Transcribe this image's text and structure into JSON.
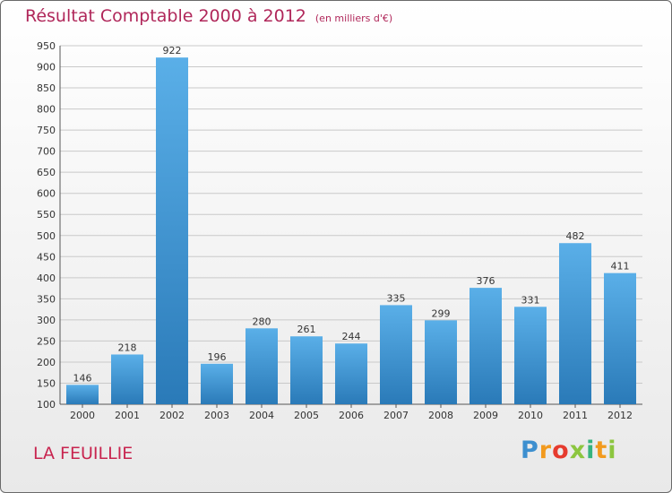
{
  "header": {
    "title": "Résultat Comptable 2000 à 2012",
    "subtitle": "(en milliers d'€)"
  },
  "footer": {
    "place": "LA FEUILLIE",
    "logo_letters": [
      "P",
      "r",
      "o",
      "x",
      "i",
      "t",
      "i"
    ]
  },
  "colors": {
    "bar_light": "#5aafe8",
    "bar_dark": "#2a7ab8",
    "grid": "#c9c9c9",
    "title": "#b0275a"
  },
  "chart_data": {
    "type": "bar",
    "title": "Résultat Comptable 2000 à 2012",
    "subtitle": "(en milliers d'€)",
    "xlabel": "",
    "ylabel": "",
    "categories": [
      "2000",
      "2001",
      "2002",
      "2003",
      "2004",
      "2005",
      "2006",
      "2007",
      "2008",
      "2009",
      "2010",
      "2011",
      "2012"
    ],
    "values": [
      146,
      218,
      922,
      196,
      280,
      261,
      244,
      335,
      299,
      376,
      331,
      482,
      411
    ],
    "ylim": [
      100,
      950
    ],
    "yticks": [
      100,
      150,
      200,
      250,
      300,
      350,
      400,
      450,
      500,
      550,
      600,
      650,
      700,
      750,
      800,
      850,
      900,
      950
    ],
    "grid": true,
    "legend": "none"
  }
}
